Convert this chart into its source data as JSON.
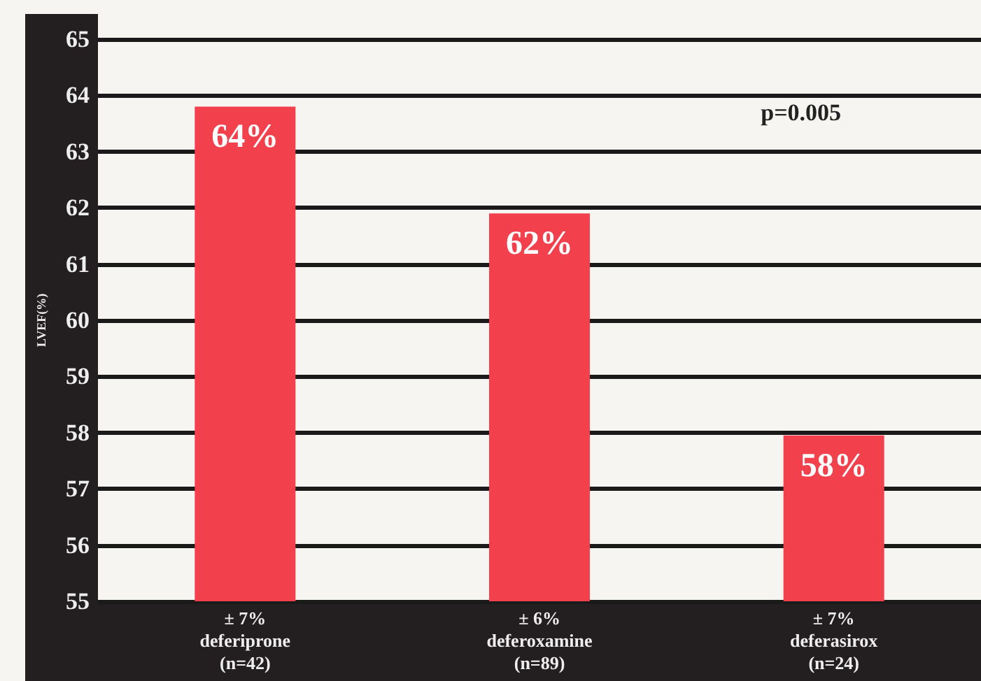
{
  "chart_data": {
    "type": "bar",
    "ylabel": "LVEF(%)",
    "categories": [
      "± 7%\ndeferiprone\n(n=42)",
      "± 6%\ndeferoxamine\n(n=89)",
      "± 7%\ndeferasirox\n(n=24)"
    ],
    "values": [
      63.8,
      61.9,
      57.95
    ],
    "value_labels": [
      "64%",
      "62%",
      "58%"
    ],
    "color": "#f2404c",
    "ylim": [
      55,
      65
    ],
    "yticks": [
      55,
      56,
      57,
      58,
      59,
      60,
      61,
      62,
      63,
      64,
      65
    ],
    "grid": "y",
    "annotations": [
      "p=0.005"
    ]
  }
}
